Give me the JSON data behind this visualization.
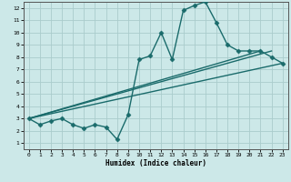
{
  "bg_color": "#cce8e8",
  "grid_color": "#aacccc",
  "line_color": "#1a6b6b",
  "marker": "D",
  "markersize": 2.5,
  "linewidth": 1.0,
  "xlabel": "Humidex (Indice chaleur)",
  "xlim": [
    -0.5,
    23.5
  ],
  "ylim": [
    0.5,
    12.5
  ],
  "xticks": [
    0,
    1,
    2,
    3,
    4,
    5,
    6,
    7,
    8,
    9,
    10,
    11,
    12,
    13,
    14,
    15,
    16,
    17,
    18,
    19,
    20,
    21,
    22,
    23
  ],
  "yticks": [
    1,
    2,
    3,
    4,
    5,
    6,
    7,
    8,
    9,
    10,
    11,
    12
  ],
  "main_series": {
    "x": [
      0,
      1,
      2,
      3,
      4,
      5,
      6,
      7,
      8,
      9,
      10,
      11,
      12,
      13,
      14,
      15,
      16,
      17,
      18,
      19,
      20,
      21,
      22,
      23
    ],
    "y": [
      3.0,
      2.5,
      2.8,
      3.0,
      2.5,
      2.2,
      2.5,
      2.3,
      1.3,
      3.3,
      7.8,
      8.1,
      10.0,
      7.8,
      11.8,
      12.2,
      12.5,
      10.8,
      9.0,
      8.5,
      8.5,
      8.5,
      8.0,
      7.5
    ]
  },
  "smooth_lines": [
    {
      "x0": 0,
      "y0": 3.0,
      "x1": 23,
      "y1": 7.5
    },
    {
      "x0": 0,
      "y0": 3.0,
      "x1": 22,
      "y1": 8.5
    },
    {
      "x0": 0,
      "y0": 3.0,
      "x1": 21,
      "y1": 8.5
    }
  ]
}
